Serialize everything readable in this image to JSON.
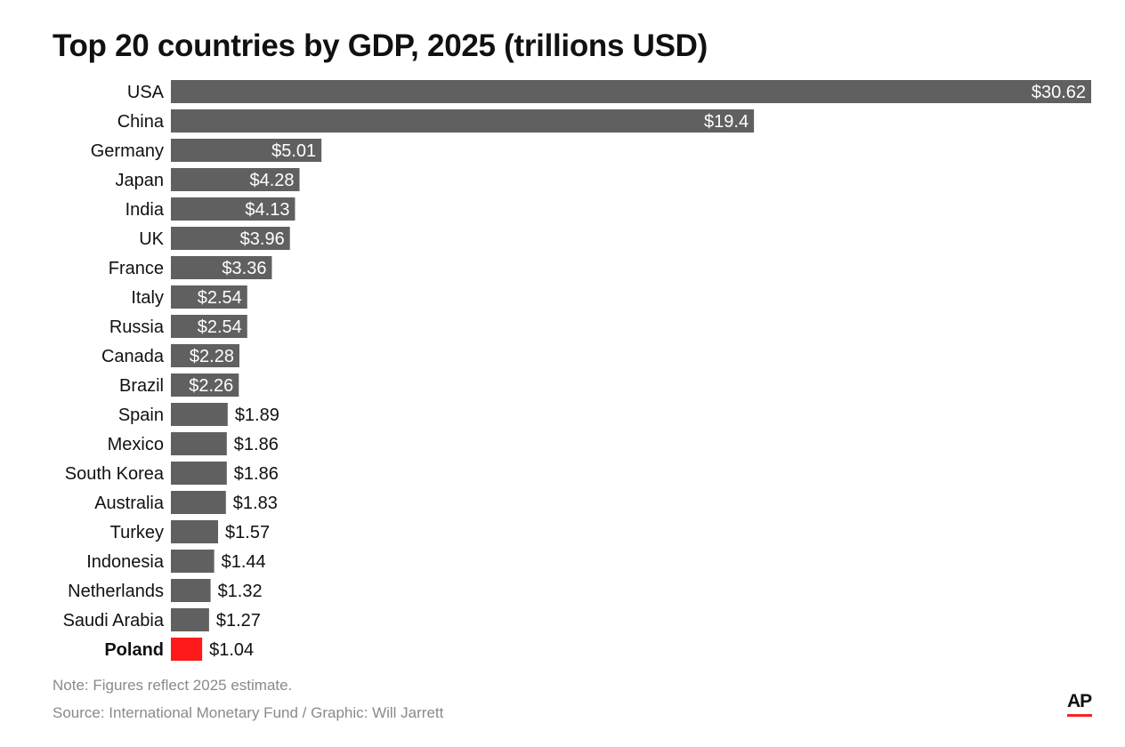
{
  "chart_data": {
    "type": "bar",
    "orientation": "horizontal",
    "title": "Top 20 countries by GDP, 2025 (trillions USD)",
    "categories": [
      "USA",
      "China",
      "Germany",
      "Japan",
      "India",
      "UK",
      "France",
      "Italy",
      "Russia",
      "Canada",
      "Brazil",
      "Spain",
      "Mexico",
      "South Korea",
      "Australia",
      "Turkey",
      "Indonesia",
      "Netherlands",
      "Saudi Arabia",
      "Poland"
    ],
    "values": [
      30.62,
      19.4,
      5.01,
      4.28,
      4.13,
      3.96,
      3.36,
      2.54,
      2.54,
      2.28,
      2.26,
      1.89,
      1.86,
      1.86,
      1.83,
      1.57,
      1.44,
      1.32,
      1.27,
      1.04
    ],
    "labels": [
      "$30.62",
      "$19.4",
      "$5.01",
      "$4.28",
      "$4.13",
      "$3.96",
      "$3.36",
      "$2.54",
      "$2.54",
      "$2.28",
      "$2.26",
      "$1.89",
      "$1.86",
      "$1.86",
      "$1.83",
      "$1.57",
      "$1.44",
      "$1.32",
      "$1.27",
      "$1.04"
    ],
    "highlight": "Poland",
    "colors": {
      "bar": "#606060",
      "highlight": "#ff1a1a"
    },
    "xlim": [
      0,
      30.62
    ],
    "grid": false,
    "legend": "none"
  },
  "footer": {
    "note": "Note: Figures reflect 2025 estimate.",
    "source": "Source: International Monetary Fund / Graphic: Will Jarrett",
    "logo": "AP"
  }
}
